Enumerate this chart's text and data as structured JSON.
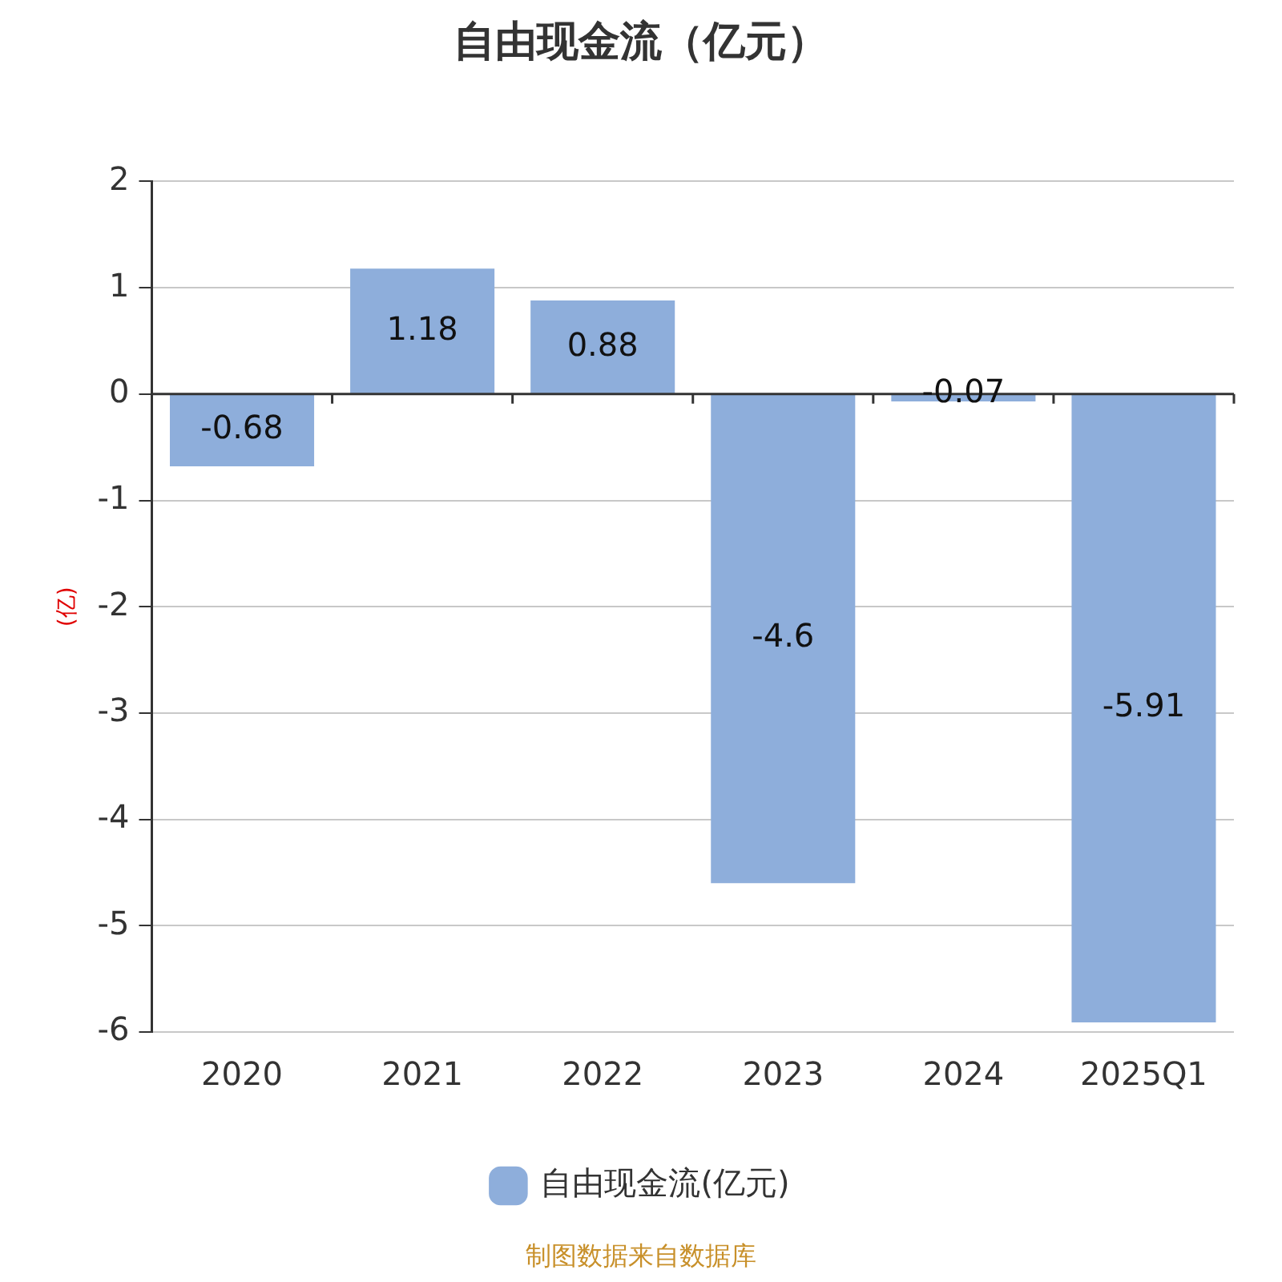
{
  "chart_data": {
    "type": "bar",
    "title": "自由现金流（亿元）",
    "ylabel": "(亿)",
    "categories": [
      "2020",
      "2021",
      "2022",
      "2023",
      "2024",
      "2025Q1"
    ],
    "series": [
      {
        "name": "自由现金流(亿元)",
        "color": "#8eaedb",
        "values": [
          -0.68,
          1.18,
          0.88,
          -4.6,
          -0.07,
          -5.91
        ]
      }
    ],
    "ylim": [
      -6,
      2
    ],
    "yticks": [
      -6,
      -5,
      -4,
      -3,
      -2,
      -1,
      0,
      1,
      2
    ],
    "grid": "y",
    "legend": "bottom",
    "data_labels": true,
    "annotations": [
      "制图数据来自数据库"
    ]
  }
}
